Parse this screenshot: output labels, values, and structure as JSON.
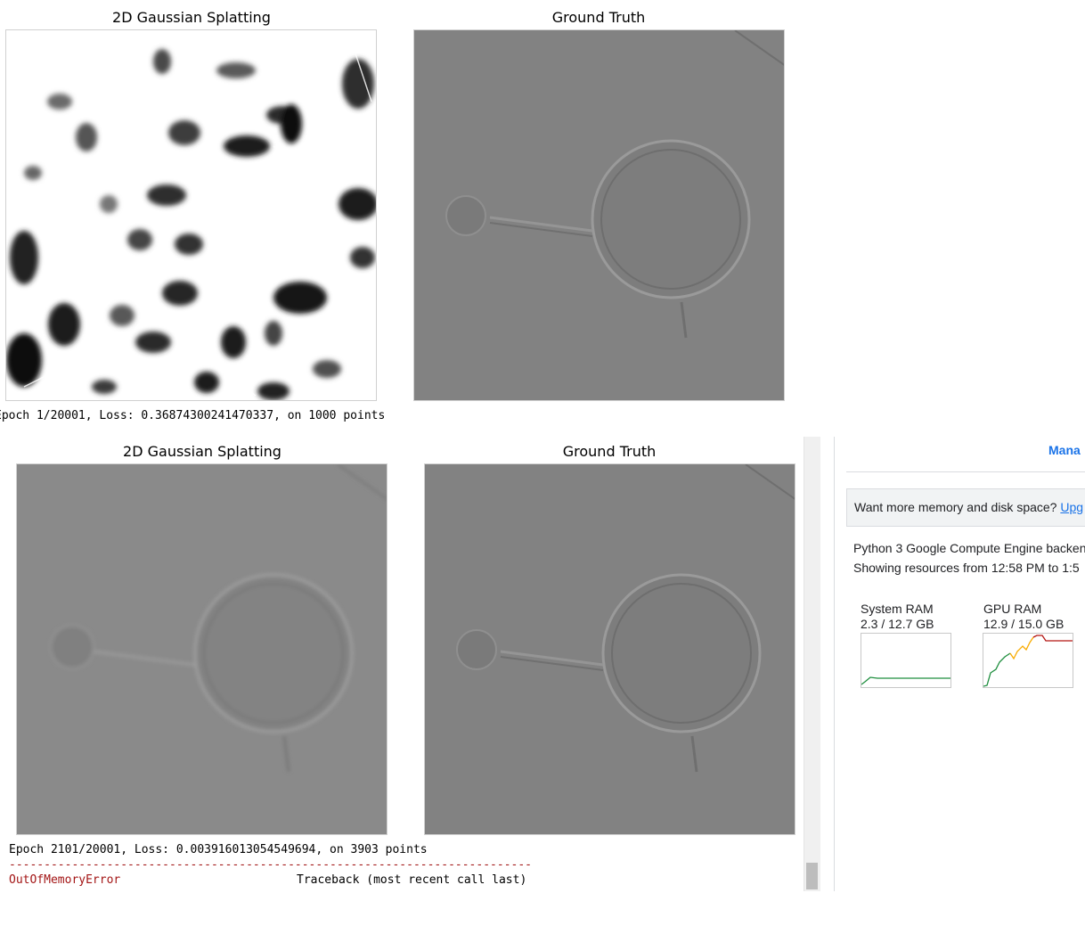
{
  "output_top": {
    "left_title": "2D Gaussian Splatting",
    "right_title": "Ground Truth",
    "log_line": "Epoch 1/20001, Loss: 0.36874300241470337, on 1000 points"
  },
  "output_bottom": {
    "left_title": "2D Gaussian Splatting",
    "right_title": "Ground Truth",
    "log_line": "Epoch 2101/20001, Loss: 0.003916013054549694, on 3903 points",
    "separator": "---------------------------------------------------------------------------",
    "error_name": "OutOfMemoryError",
    "traceback_label": "Traceback (most recent call last)"
  },
  "resources_panel": {
    "manage_link": "Mana",
    "banner_text": "Want more memory and disk space?",
    "banner_link": "Upg",
    "backend_line": "Python 3 Google Compute Engine backen",
    "range_line": "Showing resources from 12:58 PM to 1:5",
    "system_ram": {
      "label": "System RAM",
      "value": "2.3 / 12.7 GB"
    },
    "gpu_ram": {
      "label": "GPU RAM",
      "value": "12.9 / 15.0 GB"
    }
  },
  "colors": {
    "link": "#1a73e8",
    "error": "#a31515",
    "ram_line": "#1e8e3e",
    "gpu_warn": "#f9ab00",
    "gpu_critical": "#b31412"
  }
}
